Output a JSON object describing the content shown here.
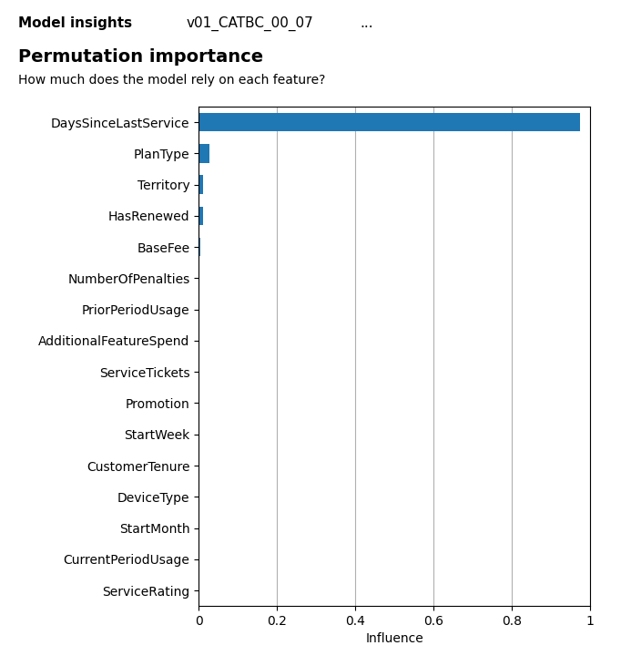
{
  "chart_data": {
    "type": "bar",
    "orientation": "horizontal",
    "title": "Permutation importance",
    "subtitle": "How much does the model rely on each feature?",
    "annotations": [
      "Model insights",
      "v01_CATBC_00_07",
      "..."
    ],
    "x_label": "Influence",
    "categories": [
      "DaysSinceLastService",
      "PlanType",
      "Territory",
      "HasRenewed",
      "BaseFee",
      "NumberOfPenalties",
      "PriorPeriodUsage",
      "AdditionalFeatureSpend",
      "ServiceTickets",
      "Promotion",
      "StartWeek",
      "CustomerTenure",
      "DeviceType",
      "StartMonth",
      "CurrentPeriodUsage",
      "ServiceRating"
    ],
    "values": [
      0.975,
      0.028,
      0.012,
      0.01,
      0.005,
      0.0,
      0.0,
      0.0,
      0.0,
      0.0,
      0.0,
      0.0,
      0.0,
      0.0,
      0.0,
      0.0
    ],
    "xlim": [
      0,
      1
    ],
    "xticks": [
      0,
      0.2,
      0.4,
      0.6,
      0.8,
      1
    ],
    "grid": true
  }
}
